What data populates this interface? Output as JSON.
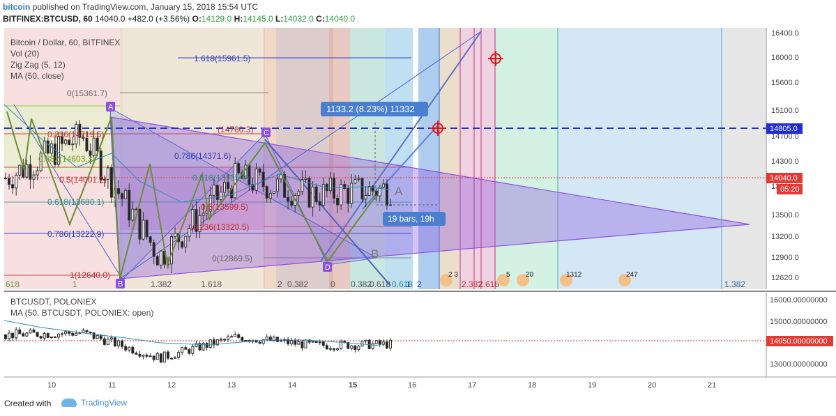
{
  "header": {
    "brand": "bitcoin",
    "published": "published on TradingView.com, January 15, 2018 15:54 UTC",
    "symbol": "BITFINEX:BTCUSD, 60",
    "last": "14040.0",
    "change": "+482.0 (+3.56%)",
    "o_label": "O:",
    "o_val": "14129.0",
    "h_label": "H:",
    "h_val": "14145.0",
    "l_label": "L:",
    "l_val": "14032.0",
    "c_label": "C:",
    "c_val": "14040.0"
  },
  "main_pane": {
    "legend": [
      "Bitcoin / Dollar, 60, BITFINEX",
      "Vol (20)",
      "Zig Zag (5, 12)",
      "MA (50, close)"
    ],
    "price_axis": [
      "16400.0",
      "16000.0",
      "15600.0",
      "15100.0",
      "14700.0",
      "14300.0",
      "13900.0",
      "13500.0",
      "13200.0",
      "12900.0",
      "12620.0"
    ],
    "price_tag_blue": "14805.0",
    "price_tag_red": "14040.0",
    "price_tag_time": "05:20",
    "fib_labels": [
      "1.618(15961.5)",
      "0(15361.7)",
      "0.236(14719.5)",
      "(14760.3)",
      "0.382(14603.3)",
      "0.786(14371.6)",
      "0.5(14001.2)",
      "0.618(13925.0)",
      "0.618(13680.1)",
      "0.5(13599.5)",
      "0.236(13320.5)",
      "0.786(13222.9)",
      "0(12869.5)",
      "1(12640.0)"
    ],
    "points": [
      "A",
      "B",
      "C",
      "D",
      "A",
      "B"
    ],
    "measure_label": "1133.2 (8.23%) 11332",
    "bars_label": "19 bars, 19h",
    "fib_time_labels": [
      "618",
      "1",
      "1.382",
      "1.618",
      "2",
      "0.382",
      "0",
      "0.382",
      "0.618",
      "0.618",
      "1",
      "2",
      "2.382",
      "2.618",
      "1.382"
    ],
    "event_badges": [
      "2 3",
      "5",
      "20",
      "1312",
      "247"
    ]
  },
  "lower_pane": {
    "legend": [
      "BTCUSDT, POLONIEX",
      "MA (50, BTCUSDT, POLONIEX: open)"
    ],
    "price_axis": [
      "16000.00000000",
      "15000.00000000",
      "14000.00000000",
      "13000.00000000"
    ],
    "price_tag": "14050.00000000"
  },
  "time_axis": [
    "10",
    "11",
    "12",
    "13",
    "14",
    "15",
    "16",
    "17",
    "18",
    "19",
    "20",
    "21"
  ],
  "footer": {
    "created": "Created with",
    "brand": "TradingView"
  },
  "colors": {
    "purple": "#8a4fe0",
    "blue_line": "#1f2fd1",
    "red_target": "#e11",
    "up": "#26a69a",
    "down": "#222"
  },
  "chart_data": [
    {
      "type": "candlestick",
      "title": "Bitcoin / Dollar, 60, BITFINEX",
      "xlabel": "",
      "ylabel": "",
      "x": [
        "10",
        "11",
        "12",
        "13",
        "14",
        "15"
      ],
      "close": [
        14200,
        14850,
        13000,
        14200,
        13950,
        14040
      ],
      "ylim": [
        12500,
        16500
      ],
      "hlines": [
        {
          "value": 14805.0,
          "label": "14805.0",
          "style": "dashed",
          "color": "#1f2fd1"
        }
      ],
      "annotations": [
        "1133.2 (8.23%) 11332",
        "19 bars, 19h"
      ]
    },
    {
      "type": "line",
      "title": "BTCUSDT, POLONIEX",
      "x": [
        "10",
        "11",
        "12",
        "13",
        "14",
        "15"
      ],
      "values": [
        14500,
        14600,
        13400,
        14400,
        14000,
        14050
      ],
      "ylim": [
        12500,
        16500
      ]
    }
  ]
}
